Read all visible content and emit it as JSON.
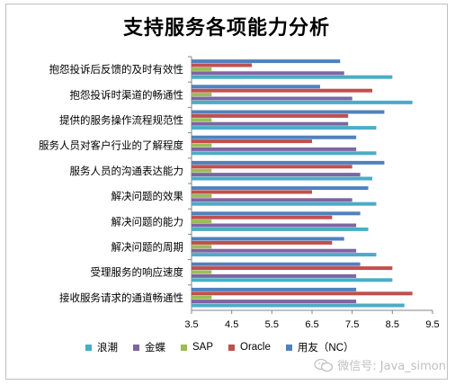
{
  "chart_data": {
    "type": "bar",
    "orientation": "horizontal",
    "title": "支持服务各项能力分析",
    "categories": [
      "接收服务请求的通道畅通性",
      "受理服务的响应速度",
      "解决问题的周期",
      "解决问题的能力",
      "解决问题的效果",
      "服务人员的沟通表达能力",
      "服务人员对客户行业的了解程度",
      "提供的服务操作流程规范性",
      "抱怨投诉时渠道的畅通性",
      "抱怨投诉后反馈的及时有效性"
    ],
    "series": [
      {
        "name": "浪潮",
        "color": "#4bacc6",
        "values": [
          8.8,
          8.5,
          8.1,
          7.9,
          8.1,
          8.0,
          8.1,
          8.1,
          9.0,
          8.5
        ]
      },
      {
        "name": "金蝶",
        "color": "#8064a2",
        "values": [
          7.6,
          7.6,
          7.6,
          7.6,
          7.5,
          7.7,
          7.6,
          7.4,
          7.5,
          7.3
        ]
      },
      {
        "name": "SAP",
        "color": "#9bbb59",
        "values": [
          4.0,
          4.0,
          4.0,
          4.0,
          4.0,
          4.0,
          4.0,
          4.0,
          4.0,
          4.0
        ]
      },
      {
        "name": "Oracle",
        "color": "#c0504d",
        "values": [
          9.0,
          8.5,
          7.0,
          7.0,
          6.5,
          7.5,
          6.5,
          7.4,
          8.0,
          5.0
        ]
      },
      {
        "name": "用友（NC）",
        "color": "#4f81bd",
        "values": [
          7.6,
          7.7,
          7.3,
          7.7,
          7.9,
          8.3,
          7.6,
          8.3,
          6.7,
          7.2
        ]
      }
    ],
    "xlim": [
      3.5,
      9.5
    ],
    "xticks": [
      "3.5",
      "4.5",
      "5.5",
      "6.5",
      "7.5",
      "8.5",
      "9.5"
    ],
    "grid": false,
    "legend_position": "bottom"
  },
  "watermark": "微信号: Java_simon"
}
